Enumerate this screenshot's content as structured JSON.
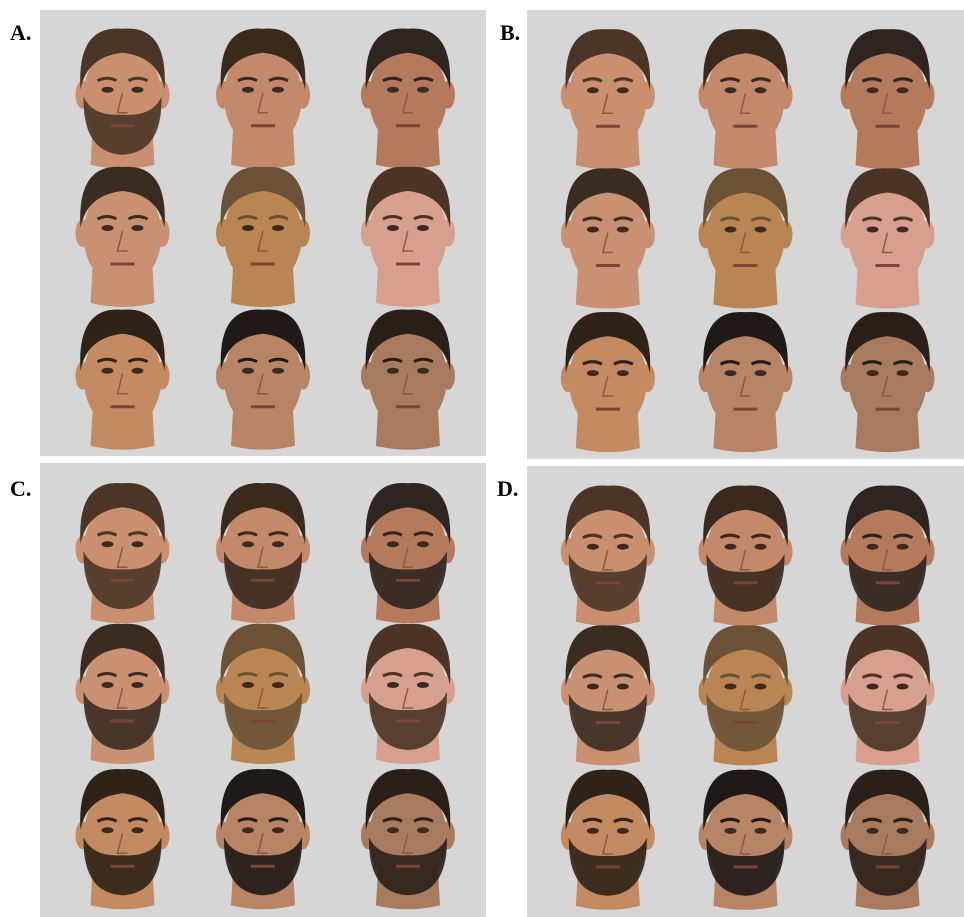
{
  "panels": [
    {
      "label": "A."
    },
    {
      "label": "B."
    },
    {
      "label": "C."
    },
    {
      "label": "D."
    }
  ]
}
